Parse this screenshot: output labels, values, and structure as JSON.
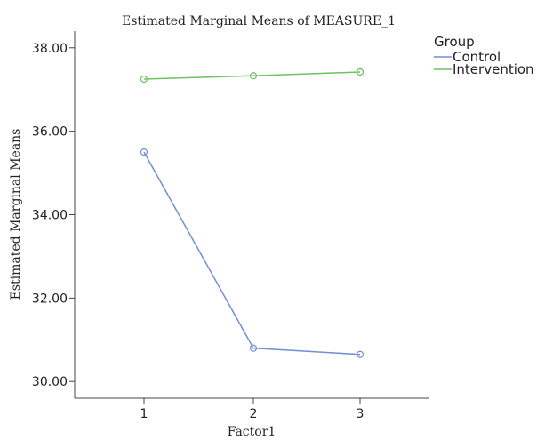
{
  "chart_data": {
    "type": "line",
    "title": "Estimated Marginal Means of MEASURE_1",
    "xlabel": "Factor1",
    "ylabel": "Estimated Marginal Means",
    "categories": [
      "1",
      "2",
      "3"
    ],
    "ylim": [
      29.6,
      38.4
    ],
    "yticks": [
      30.0,
      32.0,
      34.0,
      36.0,
      38.0
    ],
    "ytick_labels": [
      "30.00",
      "32.00",
      "34.00",
      "36.00",
      "38.00"
    ],
    "grid": false,
    "legend": {
      "title": "Group",
      "placement": "top-right"
    },
    "series": [
      {
        "name": "Control",
        "color": "#6f8fd6",
        "values": [
          35.5,
          30.8,
          30.65
        ]
      },
      {
        "name": "Intervention",
        "color": "#6cc35f",
        "values": [
          37.25,
          37.33,
          37.42
        ]
      }
    ]
  }
}
